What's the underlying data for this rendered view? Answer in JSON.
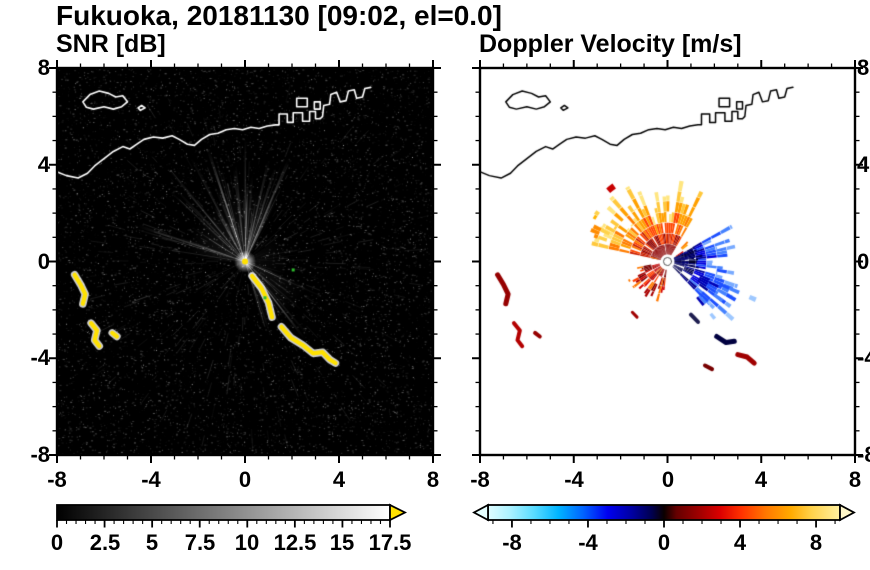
{
  "page": {
    "title": "Fukuoka, 20181130 [09:02, el=0.0]"
  },
  "panels": {
    "snr": {
      "title": "SNR [dB]"
    },
    "doppler": {
      "title": "Doppler Velocity [m/s]"
    }
  },
  "axes": {
    "range": [
      -8,
      8
    ],
    "major_ticks": [
      -8,
      -4,
      0,
      4,
      8
    ],
    "minor_step": 1,
    "x_tick_labels": [
      "-8",
      "-4",
      "0",
      "4",
      "8"
    ],
    "y_tick_labels": [
      "8",
      "4",
      "0",
      "-4",
      "-8"
    ]
  },
  "colorbars": {
    "snr": {
      "min": 0,
      "max": 17.5,
      "minor_step": 0.5,
      "tick_values": [
        0,
        2.5,
        5,
        7.5,
        10,
        12.5,
        15,
        17.5
      ],
      "tick_labels": [
        "0",
        "2.5",
        "5",
        "7.5",
        "10",
        "12.5",
        "15",
        "17.5"
      ],
      "gradient": [
        "#000000",
        "#ffffff"
      ],
      "over_color": "#ffe100"
    },
    "vel": {
      "min": -9.26,
      "max": 9.26,
      "minor_step": 1,
      "tick_values": [
        -8,
        -4,
        0,
        4,
        8
      ],
      "tick_labels": [
        "-8",
        "-4",
        "0",
        "4",
        "8"
      ],
      "stops": [
        [
          0.0,
          "#dffcff"
        ],
        [
          0.06,
          "#aef2ff"
        ],
        [
          0.13,
          "#5adcff"
        ],
        [
          0.2,
          "#00b4ff"
        ],
        [
          0.27,
          "#0064ff"
        ],
        [
          0.34,
          "#0000f0"
        ],
        [
          0.41,
          "#0000a0"
        ],
        [
          0.465,
          "#000050"
        ],
        [
          0.5,
          "#0a0000"
        ],
        [
          0.535,
          "#640000"
        ],
        [
          0.6,
          "#a00000"
        ],
        [
          0.66,
          "#dc0000"
        ],
        [
          0.72,
          "#ff3200"
        ],
        [
          0.79,
          "#ff7800"
        ],
        [
          0.86,
          "#ffaa00"
        ],
        [
          0.92,
          "#ffd24b"
        ],
        [
          1.0,
          "#fff0a0"
        ]
      ],
      "under_color": "#e6ffff",
      "over_color": "#fff7c8"
    }
  },
  "chart_data": {
    "type": "heatmap",
    "subtype": "radar_ppi_pair",
    "site": "Fukuoka",
    "date": "20181130",
    "time": "09:02",
    "elevation": 0.0,
    "x_range": [
      -8,
      8
    ],
    "y_range": [
      -8,
      8
    ],
    "radar_center": [
      0,
      0
    ],
    "coastline": {
      "main": [
        [
          -8.1,
          3.75
        ],
        [
          -7.6,
          3.55
        ],
        [
          -7.1,
          3.45
        ],
        [
          -6.7,
          3.65
        ],
        [
          -6.4,
          3.95
        ],
        [
          -6.0,
          4.25
        ],
        [
          -5.6,
          4.55
        ],
        [
          -5.2,
          4.75
        ],
        [
          -4.9,
          4.65
        ],
        [
          -4.6,
          4.85
        ],
        [
          -4.3,
          5.05
        ],
        [
          -3.9,
          5.15
        ],
        [
          -3.5,
          5.1
        ],
        [
          -3.1,
          5.2
        ],
        [
          -2.8,
          5.05
        ],
        [
          -2.45,
          4.85
        ],
        [
          -2.15,
          4.8
        ],
        [
          -1.85,
          5.05
        ],
        [
          -1.5,
          5.25
        ],
        [
          -1.15,
          5.3
        ],
        [
          -0.8,
          5.45
        ],
        [
          -0.45,
          5.5
        ],
        [
          -0.1,
          5.45
        ],
        [
          0.25,
          5.55
        ],
        [
          0.6,
          5.5
        ],
        [
          0.95,
          5.6
        ],
        [
          1.3,
          5.65
        ],
        [
          1.45,
          5.65
        ],
        [
          1.45,
          6.1
        ],
        [
          1.8,
          6.1
        ],
        [
          1.8,
          5.75
        ],
        [
          2.05,
          5.75
        ],
        [
          2.05,
          6.15
        ],
        [
          2.45,
          6.15
        ],
        [
          2.45,
          5.8
        ],
        [
          2.75,
          5.8
        ],
        [
          2.75,
          6.2
        ],
        [
          3.0,
          6.2
        ],
        [
          3.0,
          5.9
        ],
        [
          3.2,
          5.9
        ],
        [
          3.3,
          6.0
        ],
        [
          3.35,
          6.45
        ],
        [
          3.6,
          6.5
        ],
        [
          3.65,
          6.9
        ],
        [
          3.9,
          7.0
        ],
        [
          4.05,
          6.6
        ],
        [
          4.3,
          6.65
        ],
        [
          4.4,
          7.05
        ],
        [
          4.65,
          7.1
        ],
        [
          4.75,
          6.75
        ],
        [
          5.0,
          6.8
        ],
        [
          5.1,
          7.15
        ],
        [
          5.35,
          7.2
        ]
      ],
      "island": [
        [
          -6.9,
          6.6
        ],
        [
          -6.6,
          6.9
        ],
        [
          -6.2,
          7.05
        ],
        [
          -5.8,
          6.95
        ],
        [
          -5.5,
          6.8
        ],
        [
          -5.2,
          6.85
        ],
        [
          -5.0,
          6.6
        ],
        [
          -5.25,
          6.4
        ],
        [
          -5.6,
          6.3
        ],
        [
          -6.0,
          6.4
        ],
        [
          -6.45,
          6.3
        ],
        [
          -6.75,
          6.38
        ]
      ],
      "islets": [
        [
          [
            -4.55,
            6.35
          ],
          [
            -4.4,
            6.45
          ],
          [
            -4.25,
            6.35
          ],
          [
            -4.45,
            6.25
          ]
        ]
      ],
      "harbor_rects": [
        [
          2.2,
          6.4,
          0.45,
          0.35
        ],
        [
          2.95,
          6.3,
          0.25,
          0.3
        ]
      ]
    },
    "snr": {
      "background": "#000000",
      "noise": {
        "speckle_count": 12000,
        "bright_count": 650,
        "radial_streaks": 260
      },
      "glow_wedges": [
        {
          "az": [
            -80,
            -15
          ],
          "r": 2.6,
          "alpha": 0.1
        },
        {
          "az": [
            -20,
            28
          ],
          "r": 3.1,
          "alpha": 0.09
        },
        {
          "az": [
            112,
            165
          ],
          "r": 2.9,
          "alpha": 0.08
        },
        {
          "az": [
            55,
            112
          ],
          "r": 1.8,
          "alpha": 0.05
        }
      ],
      "ray_clusters": [
        {
          "az": [
            -85,
            30
          ],
          "count": 48,
          "len": [
            1.6,
            5.2
          ],
          "alpha": [
            0.18,
            0.55
          ],
          "width": [
            0.6,
            1.8
          ]
        },
        {
          "az": [
            112,
            166
          ],
          "count": 20,
          "len": [
            1.4,
            4.6
          ],
          "alpha": [
            0.15,
            0.5
          ],
          "width": [
            0.6,
            1.6
          ]
        },
        {
          "az": [
            30,
            112
          ],
          "count": 9,
          "len": [
            0.9,
            2.6
          ],
          "alpha": [
            0.08,
            0.25
          ],
          "width": [
            0.5,
            1.2
          ]
        },
        {
          "az": [
            166,
            275
          ],
          "count": 12,
          "len": [
            0.8,
            2.4
          ],
          "alpha": [
            0.08,
            0.22
          ],
          "width": [
            0.5,
            1.2
          ]
        }
      ],
      "clutter_color": "#ffe100",
      "clutter_halo": "#ffffff",
      "clutter_features": [
        [
          [
            0.3,
            -0.6
          ],
          [
            0.7,
            -1.1
          ],
          [
            1.0,
            -1.7
          ],
          [
            1.15,
            -2.3
          ]
        ],
        [
          [
            1.55,
            -2.7
          ],
          [
            1.95,
            -3.15
          ],
          [
            2.45,
            -3.45
          ],
          [
            2.9,
            -3.8
          ],
          [
            3.3,
            -3.75
          ],
          [
            3.6,
            -4.05
          ],
          [
            3.85,
            -4.2
          ]
        ],
        [
          [
            -7.25,
            -0.55
          ],
          [
            -7.0,
            -0.95
          ],
          [
            -6.8,
            -1.35
          ],
          [
            -6.9,
            -1.75
          ]
        ],
        [
          [
            -6.55,
            -2.55
          ],
          [
            -6.3,
            -2.85
          ],
          [
            -6.4,
            -3.25
          ],
          [
            -6.2,
            -3.5
          ]
        ],
        [
          [
            -5.65,
            -2.95
          ],
          [
            -5.45,
            -3.1
          ]
        ]
      ],
      "specks": [
        {
          "color": "#2db82d",
          "xy": [
            2.05,
            -0.35
          ]
        },
        {
          "color": "#2db82d",
          "xy": [
            0.85,
            -1.5
          ]
        }
      ],
      "coast_color": "#ffffff"
    },
    "doppler": {
      "background": "#ffffff",
      "fans": [
        {
          "az": [
            -78,
            28
          ],
          "r0": 0.3,
          "rmax": [
            1.9,
            3.6
          ],
          "daz": 3.2,
          "dr": 0.45,
          "density": 0.88,
          "radial_bias": true,
          "palette": [
            "#8c0000",
            "#c81e00",
            "#ff4600",
            "#ff7d00",
            "#ffa000",
            "#ffc83c",
            "#ffe680"
          ]
        },
        {
          "az": [
            -72,
            -48
          ],
          "r0": 2.7,
          "rmax": [
            3.0,
            4.0
          ],
          "daz": 3,
          "dr": 0.4,
          "density": 0.3,
          "radial_bias": false,
          "palette": [
            "#ff8c00",
            "#ffb400",
            "#ffd24b"
          ]
        },
        {
          "az": [
            60,
            134
          ],
          "r0": 0.3,
          "rmax": [
            1.6,
            3.3
          ],
          "daz": 3.2,
          "dr": 0.45,
          "density": 0.85,
          "radial_bias": true,
          "palette": [
            "#000050",
            "#000096",
            "#0000dc",
            "#1e50ff",
            "#4682ff",
            "#78aaff"
          ]
        },
        {
          "az": [
            58,
            102
          ],
          "r0": 0.3,
          "rmax": [
            1.0,
            1.7
          ],
          "daz": 3,
          "dr": 0.3,
          "density": 0.9,
          "radial_bias": false,
          "palette": [
            "#000028",
            "#000050",
            "#000078"
          ]
        },
        {
          "az": [
            112,
            142
          ],
          "r0": 1.5,
          "rmax": [
            2.4,
            4.3
          ],
          "daz": 3,
          "dr": 0.45,
          "density": 0.5,
          "radial_bias": true,
          "palette": [
            "#0000b4",
            "#1e50ff",
            "#4682ff",
            "#9ec8ff"
          ]
        },
        {
          "az": [
            186,
            258
          ],
          "r0": 0.35,
          "rmax": [
            0.9,
            1.9
          ],
          "daz": 3.5,
          "dr": 0.35,
          "density": 0.85,
          "radial_bias": false,
          "palette": [
            "#780000",
            "#aa0000",
            "#d20000",
            "#ff3c00",
            "#ff7800"
          ]
        },
        {
          "az": [
            28,
            60
          ],
          "r0": 0.4,
          "rmax": [
            0.8,
            2.3
          ],
          "daz": 4,
          "dr": 0.4,
          "density": 0.18,
          "radial_bias": false,
          "palette": [
            "#ff7d00",
            "#ffa000",
            "#d20000"
          ]
        },
        {
          "az": [
            250,
            300
          ],
          "r0": 0.4,
          "rmax": [
            0.6,
            1.4
          ],
          "daz": 4,
          "dr": 0.35,
          "density": 0.15,
          "radial_bias": false,
          "palette": [
            "#d20000",
            "#ff7d00"
          ]
        },
        {
          "az": [
            -60,
            -25
          ],
          "r0": 3.4,
          "rmax": [
            3.6,
            4.4
          ],
          "daz": 5,
          "dr": 0.35,
          "density": 0.12,
          "radial_bias": false,
          "palette": [
            "#c80000",
            "#ff6400"
          ]
        }
      ],
      "features": [
        {
          "color": "#960000",
          "width": 5,
          "points": [
            [
              -7.25,
              -0.55
            ],
            [
              -7.0,
              -0.95
            ],
            [
              -6.8,
              -1.35
            ],
            [
              -6.9,
              -1.75
            ]
          ]
        },
        {
          "color": "#b40000",
          "width": 4,
          "points": [
            [
              -6.55,
              -2.55
            ],
            [
              -6.3,
              -2.85
            ],
            [
              -6.4,
              -3.25
            ],
            [
              -6.2,
              -3.5
            ]
          ]
        },
        {
          "color": "#960000",
          "width": 4,
          "points": [
            [
              -5.65,
              -2.95
            ],
            [
              -5.45,
              -3.1
            ]
          ]
        },
        {
          "color": "#1e1e50",
          "width": 4,
          "points": [
            [
              1.0,
              -2.2
            ],
            [
              1.3,
              -2.5
            ]
          ]
        },
        {
          "color": "#000040",
          "width": 5,
          "points": [
            [
              2.1,
              -3.1
            ],
            [
              2.5,
              -3.35
            ],
            [
              2.85,
              -3.3
            ]
          ]
        },
        {
          "color": "#a00000",
          "width": 5,
          "points": [
            [
              3.0,
              -3.85
            ],
            [
              3.4,
              -3.95
            ],
            [
              3.7,
              -4.2
            ]
          ]
        },
        {
          "color": "#780000",
          "width": 4,
          "points": [
            [
              1.6,
              -4.3
            ],
            [
              1.9,
              -4.45
            ]
          ]
        },
        {
          "color": "#a00000",
          "width": 3,
          "points": [
            [
              -1.5,
              -2.1
            ],
            [
              -1.3,
              -2.3
            ]
          ]
        }
      ],
      "center_dot": {
        "fill": "#ffffff",
        "stroke": "#555555",
        "radius_px": 4
      },
      "coast_color": "#000000"
    }
  }
}
